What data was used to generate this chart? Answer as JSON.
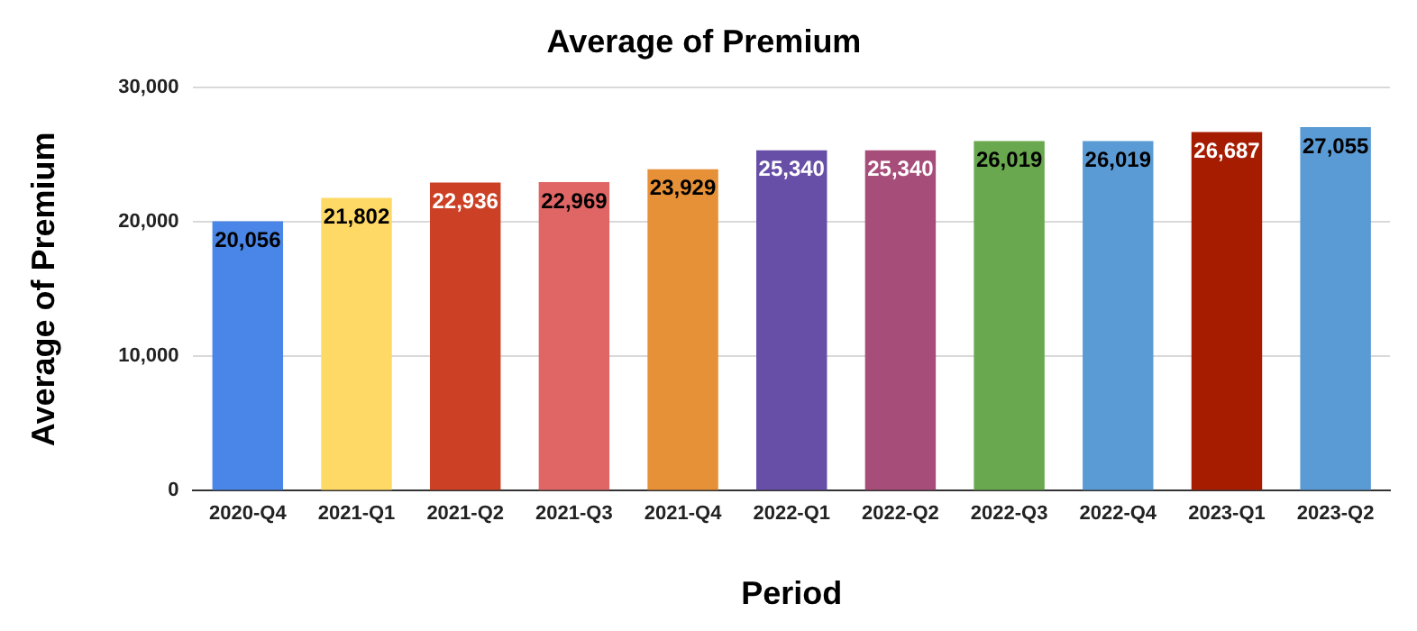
{
  "chart_data": {
    "type": "bar",
    "title": "Average of Premium",
    "xlabel": "Period",
    "ylabel": "Average of Premium",
    "categories": [
      "2020-Q4",
      "2021-Q1",
      "2021-Q2",
      "2021-Q3",
      "2021-Q4",
      "2022-Q1",
      "2022-Q2",
      "2022-Q3",
      "2022-Q4",
      "2023-Q1",
      "2023-Q2"
    ],
    "values": [
      20056,
      21802,
      22936,
      22969,
      23929,
      25340,
      25340,
      26019,
      26019,
      26687,
      27055
    ],
    "colors": [
      "#4a86e8",
      "#ffd966",
      "#cc4125",
      "#e06666",
      "#e69138",
      "#674ea7",
      "#a64d79",
      "#6aa84f",
      "#5b9bd5",
      "#a61c00",
      "#5b9bd5"
    ],
    "value_labels": [
      "20,056",
      "21,802",
      "22,936",
      "22,969",
      "23,929",
      "25,340",
      "25,340",
      "26,019",
      "26,019",
      "26,687",
      "27,055"
    ],
    "ylim": [
      0,
      30000
    ],
    "yticks": [
      0,
      {
        "value": 10000,
        "label": "10,000"
      },
      {
        "value": 20000,
        "label": "20,000"
      },
      {
        "value": 30000,
        "label": "30,000"
      }
    ],
    "grid": "y"
  }
}
